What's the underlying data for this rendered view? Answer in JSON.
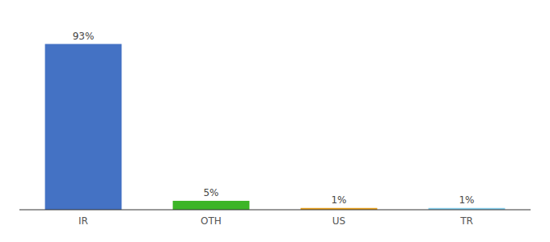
{
  "chart_data": {
    "type": "bar",
    "categories": [
      "IR",
      "OTH",
      "US",
      "TR"
    ],
    "values": [
      93,
      5,
      1,
      1
    ],
    "value_labels": [
      "93%",
      "5%",
      "1%",
      "1%"
    ],
    "data_labels": true,
    "colors": [
      "#4472c4",
      "#3cb527",
      "#e6a020",
      "#87ceeb"
    ],
    "ylim": [
      0,
      105
    ],
    "grid": false,
    "tick_labels": "x"
  }
}
